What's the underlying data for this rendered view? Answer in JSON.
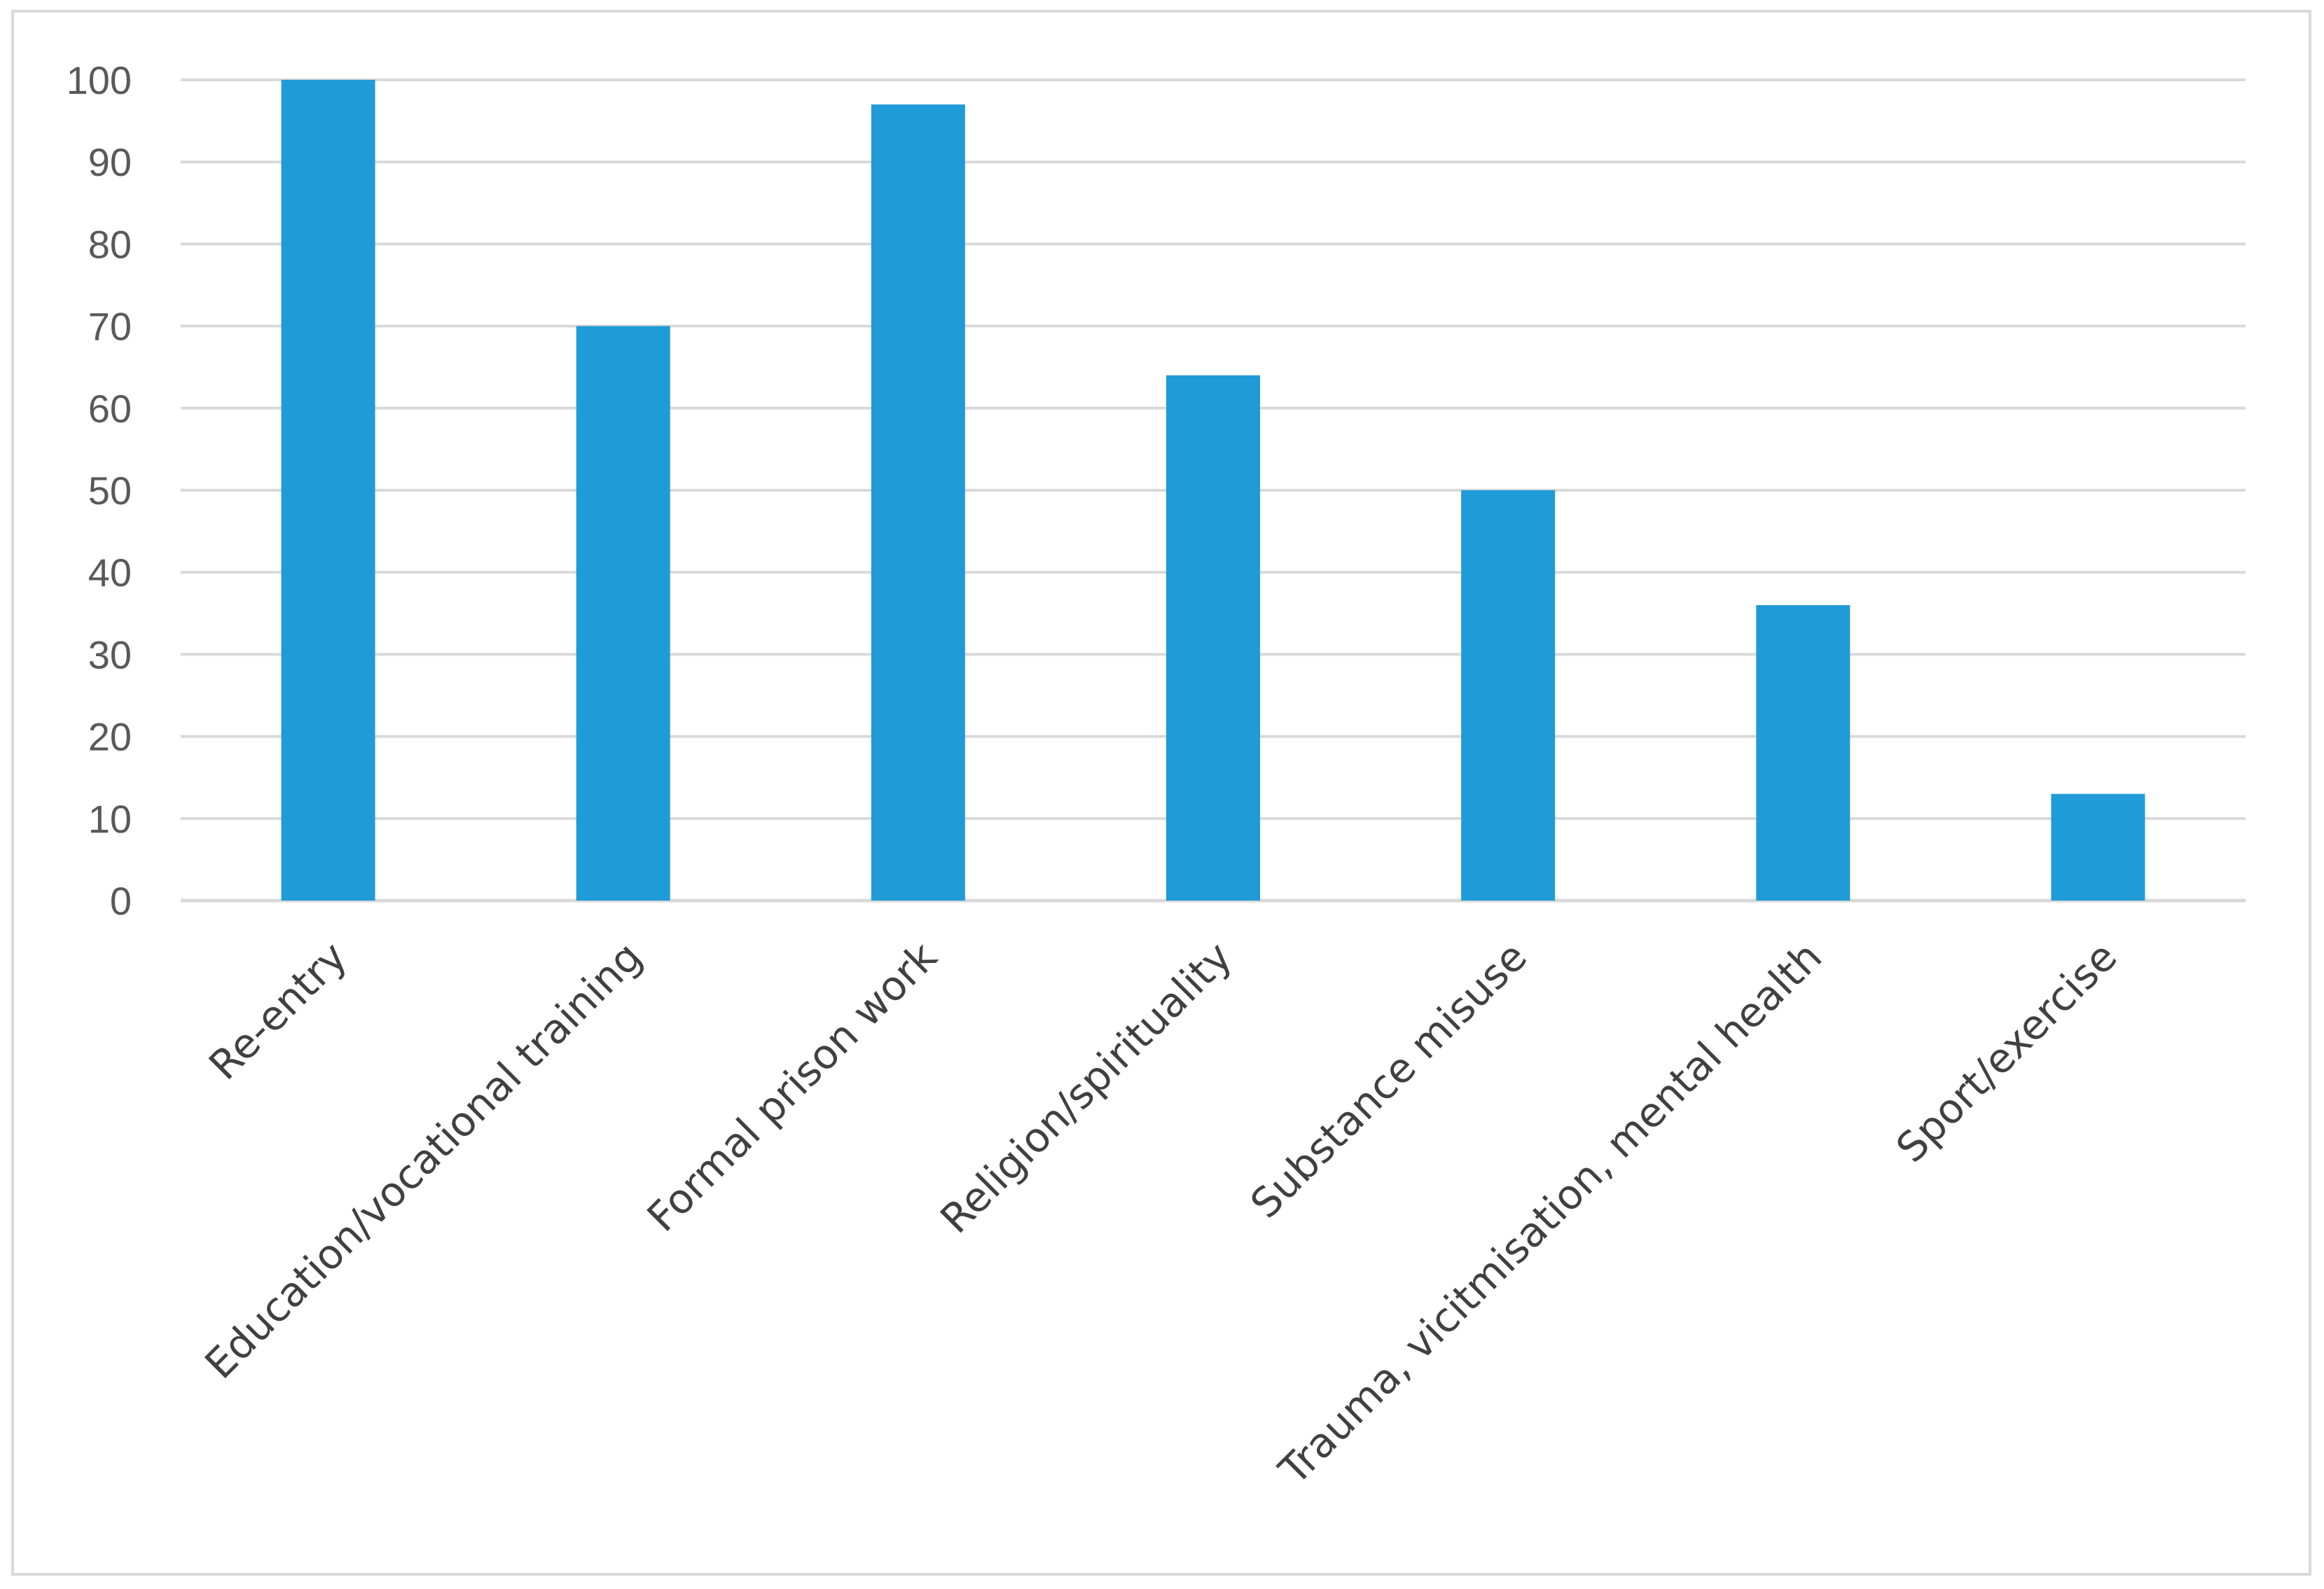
{
  "chart_data": {
    "type": "bar",
    "title": "",
    "xlabel": "",
    "ylabel": "",
    "categories": [
      "Re-entry",
      "Education/vocational training",
      "Formal prison work",
      "Religion/spirituality",
      "Substance misuse",
      "Trauma, vicitmisation, mental health",
      "Sport/exercise"
    ],
    "values": [
      100,
      70,
      97,
      64,
      50,
      36,
      13
    ],
    "ylim": [
      0,
      100
    ],
    "yticks": [
      0,
      10,
      20,
      30,
      40,
      50,
      60,
      70,
      80,
      90,
      100
    ],
    "grid": true,
    "legend": "none",
    "colors": {
      "bar": "#1f9bd7",
      "grid": "#d9d9d9",
      "tick_text": "#595959",
      "category_text": "#404040"
    }
  }
}
